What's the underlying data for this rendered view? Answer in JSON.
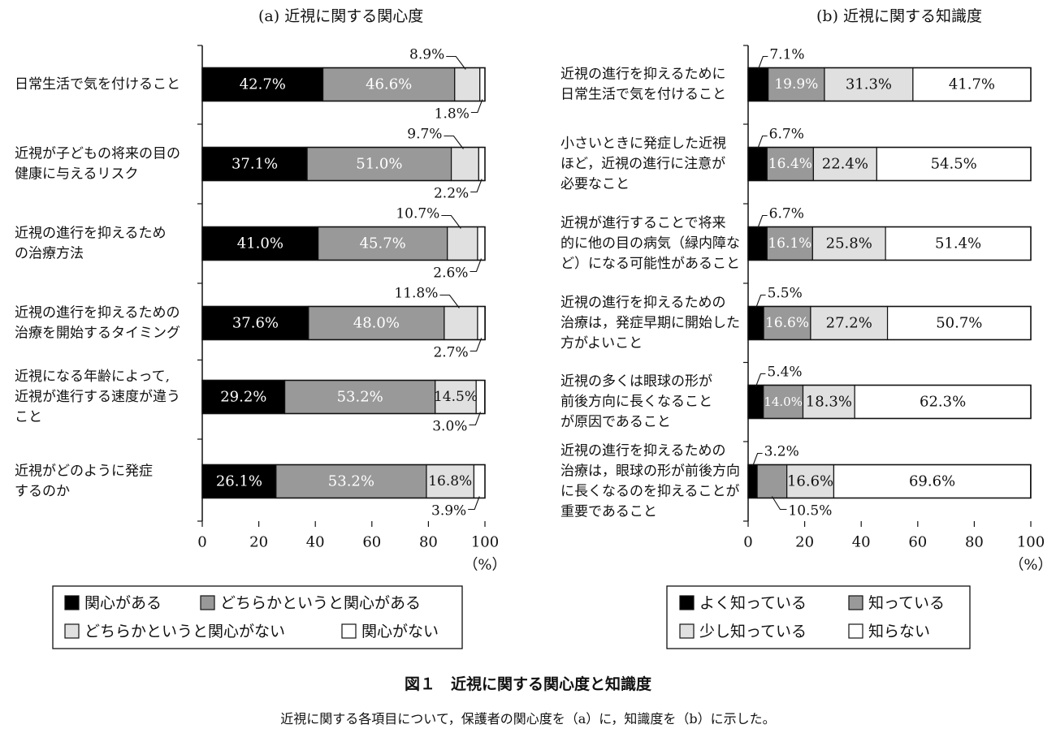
{
  "colors": {
    "s1": "#000000",
    "s2": "#999999",
    "s3": "#e0e0e0",
    "s4": "#ffffff"
  },
  "chart_data": [
    {
      "type": "bar",
      "orientation": "horizontal",
      "stacked": true,
      "title": "(a) 近視に関する関心度",
      "categories": [
        [
          "日常生活で気を付けること"
        ],
        [
          "近視が子どもの将来の目の",
          "健康に与えるリスク"
        ],
        [
          "近視の進行を抑えるため",
          "の治療方法"
        ],
        [
          "近視の進行を抑えるための",
          "治療を開始するタイミング"
        ],
        [
          "近視になる年齢によって,",
          "近視が進行する速度が違う",
          "こと"
        ],
        [
          "近視がどのように発症",
          "するのか"
        ]
      ],
      "series": [
        {
          "name": "関心がある",
          "values": [
            42.7,
            37.1,
            41.0,
            37.6,
            29.2,
            26.1
          ],
          "labels": [
            "42.7%",
            "37.1%",
            "41.0%",
            "37.6%",
            "29.2%",
            "26.1%"
          ]
        },
        {
          "name": "どちらかというと関心がある",
          "values": [
            46.6,
            51.0,
            45.7,
            48.0,
            53.2,
            53.2
          ],
          "labels": [
            "46.6%",
            "51.0%",
            "45.7%",
            "48.0%",
            "53.2%",
            "53.2%"
          ]
        },
        {
          "name": "どちらかというと関心がない",
          "values": [
            8.9,
            9.7,
            10.7,
            11.8,
            14.5,
            16.8
          ],
          "labels": [
            "8.9%",
            "9.7%",
            "10.7%",
            "11.8%",
            "14.5%",
            "16.8%"
          ]
        },
        {
          "name": "関心がない",
          "values": [
            1.8,
            2.2,
            2.6,
            2.7,
            3.0,
            3.9
          ],
          "labels": [
            "1.8%",
            "2.2%",
            "2.6%",
            "2.7%",
            "3.0%",
            "3.9%"
          ]
        }
      ],
      "xlim": [
        0,
        100
      ],
      "xticks": [
        "0",
        "20",
        "40",
        "60",
        "80",
        "100"
      ],
      "xunit": "（%）",
      "legend": [
        "関心がある",
        "どちらかというと関心がある",
        "どちらかというと関心がない",
        "関心がない"
      ]
    },
    {
      "type": "bar",
      "orientation": "horizontal",
      "stacked": true,
      "title": "(b) 近視に関する知識度",
      "categories": [
        [
          "近視の進行を抑えるために",
          "日常生活で気を付けること"
        ],
        [
          "小さいときに発症した近視",
          "ほど，近視の進行に注意が",
          "必要なこと"
        ],
        [
          "近視が進行することで将来",
          "的に他の目の病気（緑内障な",
          "ど）になる可能性があること"
        ],
        [
          "近視の進行を抑えるための",
          "治療は，発症早期に開始した",
          "方がよいこと"
        ],
        [
          "近視の多くは眼球の形が",
          "前後方向に長くなること",
          "が原因であること"
        ],
        [
          "近視の進行を抑えるための",
          "治療は，眼球の形が前後方向",
          "に長くなるのを抑えることが",
          "重要であること"
        ]
      ],
      "series": [
        {
          "name": "よく知っている",
          "values": [
            7.1,
            6.7,
            6.7,
            5.5,
            5.4,
            3.2
          ],
          "labels": [
            "7.1%",
            "6.7%",
            "6.7%",
            "5.5%",
            "5.4%",
            "3.2%"
          ]
        },
        {
          "name": "知っている",
          "values": [
            19.9,
            16.4,
            16.1,
            16.6,
            14.0,
            10.5
          ],
          "labels": [
            "19.9%",
            "16.4%",
            "16.1%",
            "16.6%",
            "14.0%",
            "10.5%"
          ]
        },
        {
          "name": "少し知っている",
          "values": [
            31.3,
            22.4,
            25.8,
            27.2,
            18.3,
            16.6
          ],
          "labels": [
            "31.3%",
            "22.4%",
            "25.8%",
            "27.2%",
            "18.3%",
            "16.6%"
          ]
        },
        {
          "name": "知らない",
          "values": [
            41.7,
            54.5,
            51.4,
            50.7,
            62.3,
            69.6
          ],
          "labels": [
            "41.7%",
            "54.5%",
            "51.4%",
            "50.7%",
            "62.3%",
            "69.6%"
          ]
        }
      ],
      "xlim": [
        0,
        100
      ],
      "xticks": [
        "0",
        "20",
        "40",
        "60",
        "80",
        "100"
      ],
      "xunit": "（%）",
      "legend": [
        "よく知っている",
        "知っている",
        "少し知っている",
        "知らない"
      ]
    }
  ],
  "caption": {
    "title": "図１　近視に関する関心度と知識度",
    "subtitle": "近視に関する各項目について，保護者の関心度を（a）に，知識度を（b）に示した。"
  }
}
